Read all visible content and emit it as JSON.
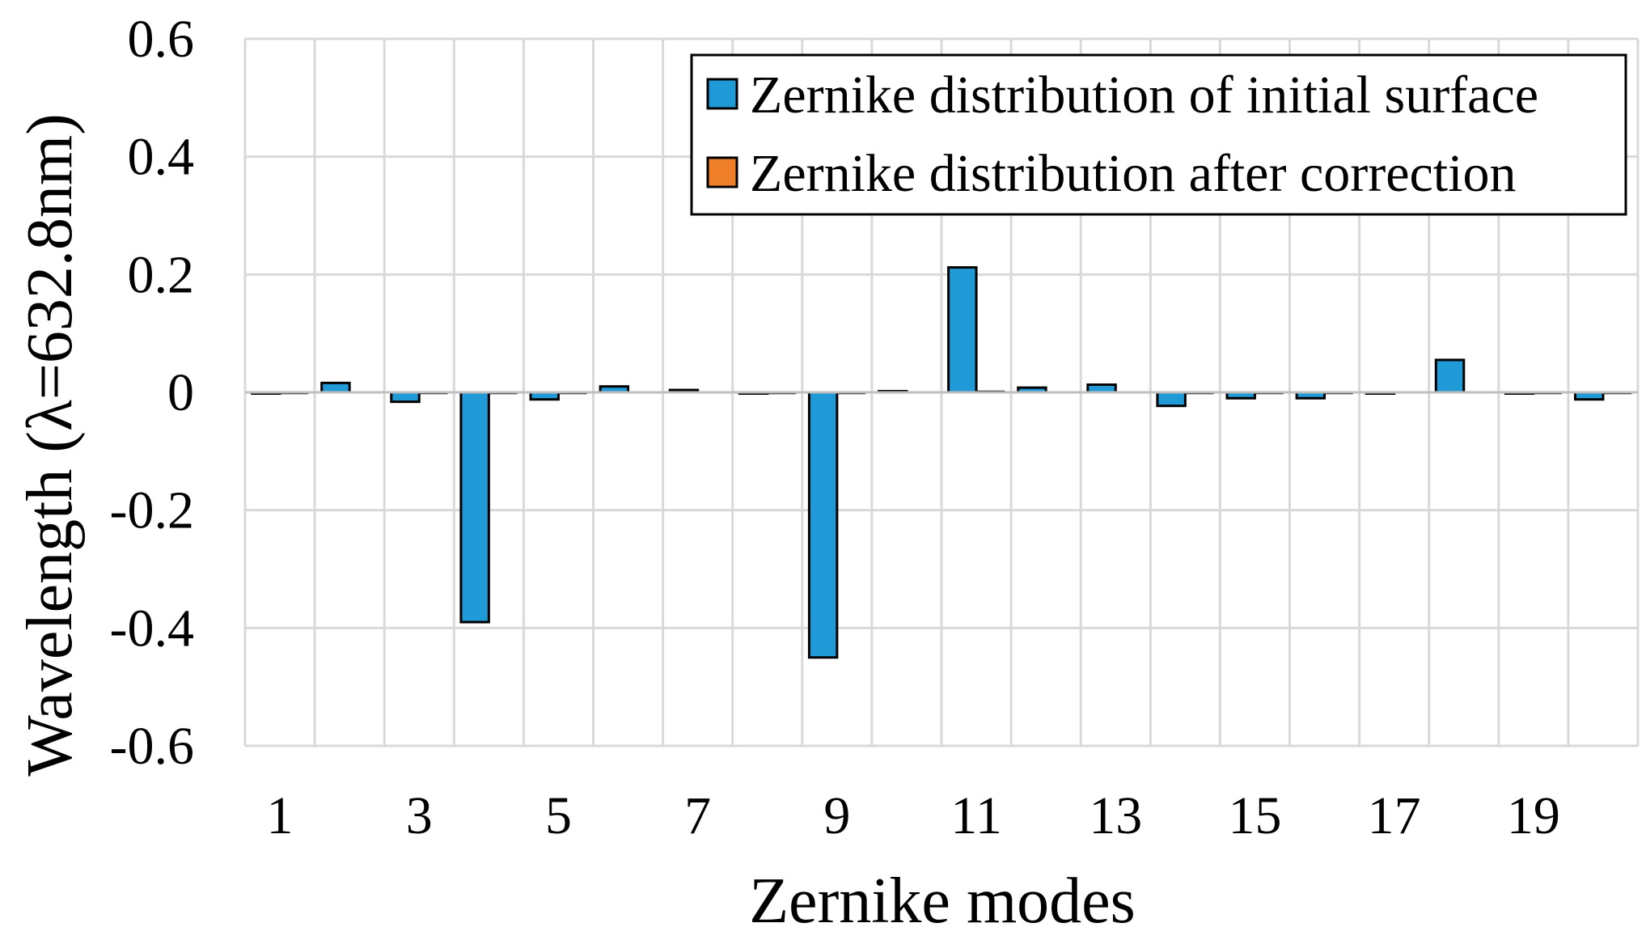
{
  "chart_data": {
    "type": "bar",
    "title": "",
    "xlabel": "Zernike modes",
    "ylabel": "Wavelength (λ=632.8nm)",
    "ylim": [
      -0.6,
      0.6
    ],
    "yticks": [
      "0.6",
      "0.4",
      "0.2",
      "0",
      "-0.2",
      "-0.4",
      "-0.6"
    ],
    "ytick_values": [
      0.6,
      0.4,
      0.2,
      0,
      -0.2,
      -0.4,
      -0.6
    ],
    "categories": [
      "1",
      "2",
      "3",
      "4",
      "5",
      "6",
      "7",
      "8",
      "9",
      "10",
      "11",
      "12",
      "13",
      "14",
      "15",
      "16",
      "17",
      "18",
      "19",
      "20"
    ],
    "xtick_labels_shown": [
      "1",
      "3",
      "5",
      "7",
      "9",
      "11",
      "13",
      "15",
      "17",
      "19"
    ],
    "grid": true,
    "legend_position": "top-right",
    "series": [
      {
        "name": "Zernike distribution of initial surface",
        "color": "#1f9ad6",
        "values": [
          0,
          0.016,
          -0.016,
          -0.39,
          -0.012,
          0.01,
          0.004,
          0,
          -0.45,
          0.002,
          0.212,
          0.008,
          0.013,
          -0.023,
          -0.01,
          -0.01,
          -0.002,
          0.055,
          0,
          -0.012
        ]
      },
      {
        "name": "Zernike distribution after correction",
        "color": "#f07f2a",
        "values": [
          0,
          0.001,
          -0.001,
          -0.002,
          -0.001,
          0.001,
          0.001,
          0,
          -0.002,
          0.001,
          0.002,
          0.001,
          0.001,
          -0.001,
          -0.001,
          -0.001,
          0.001,
          0.001,
          0,
          -0.001
        ]
      }
    ]
  }
}
